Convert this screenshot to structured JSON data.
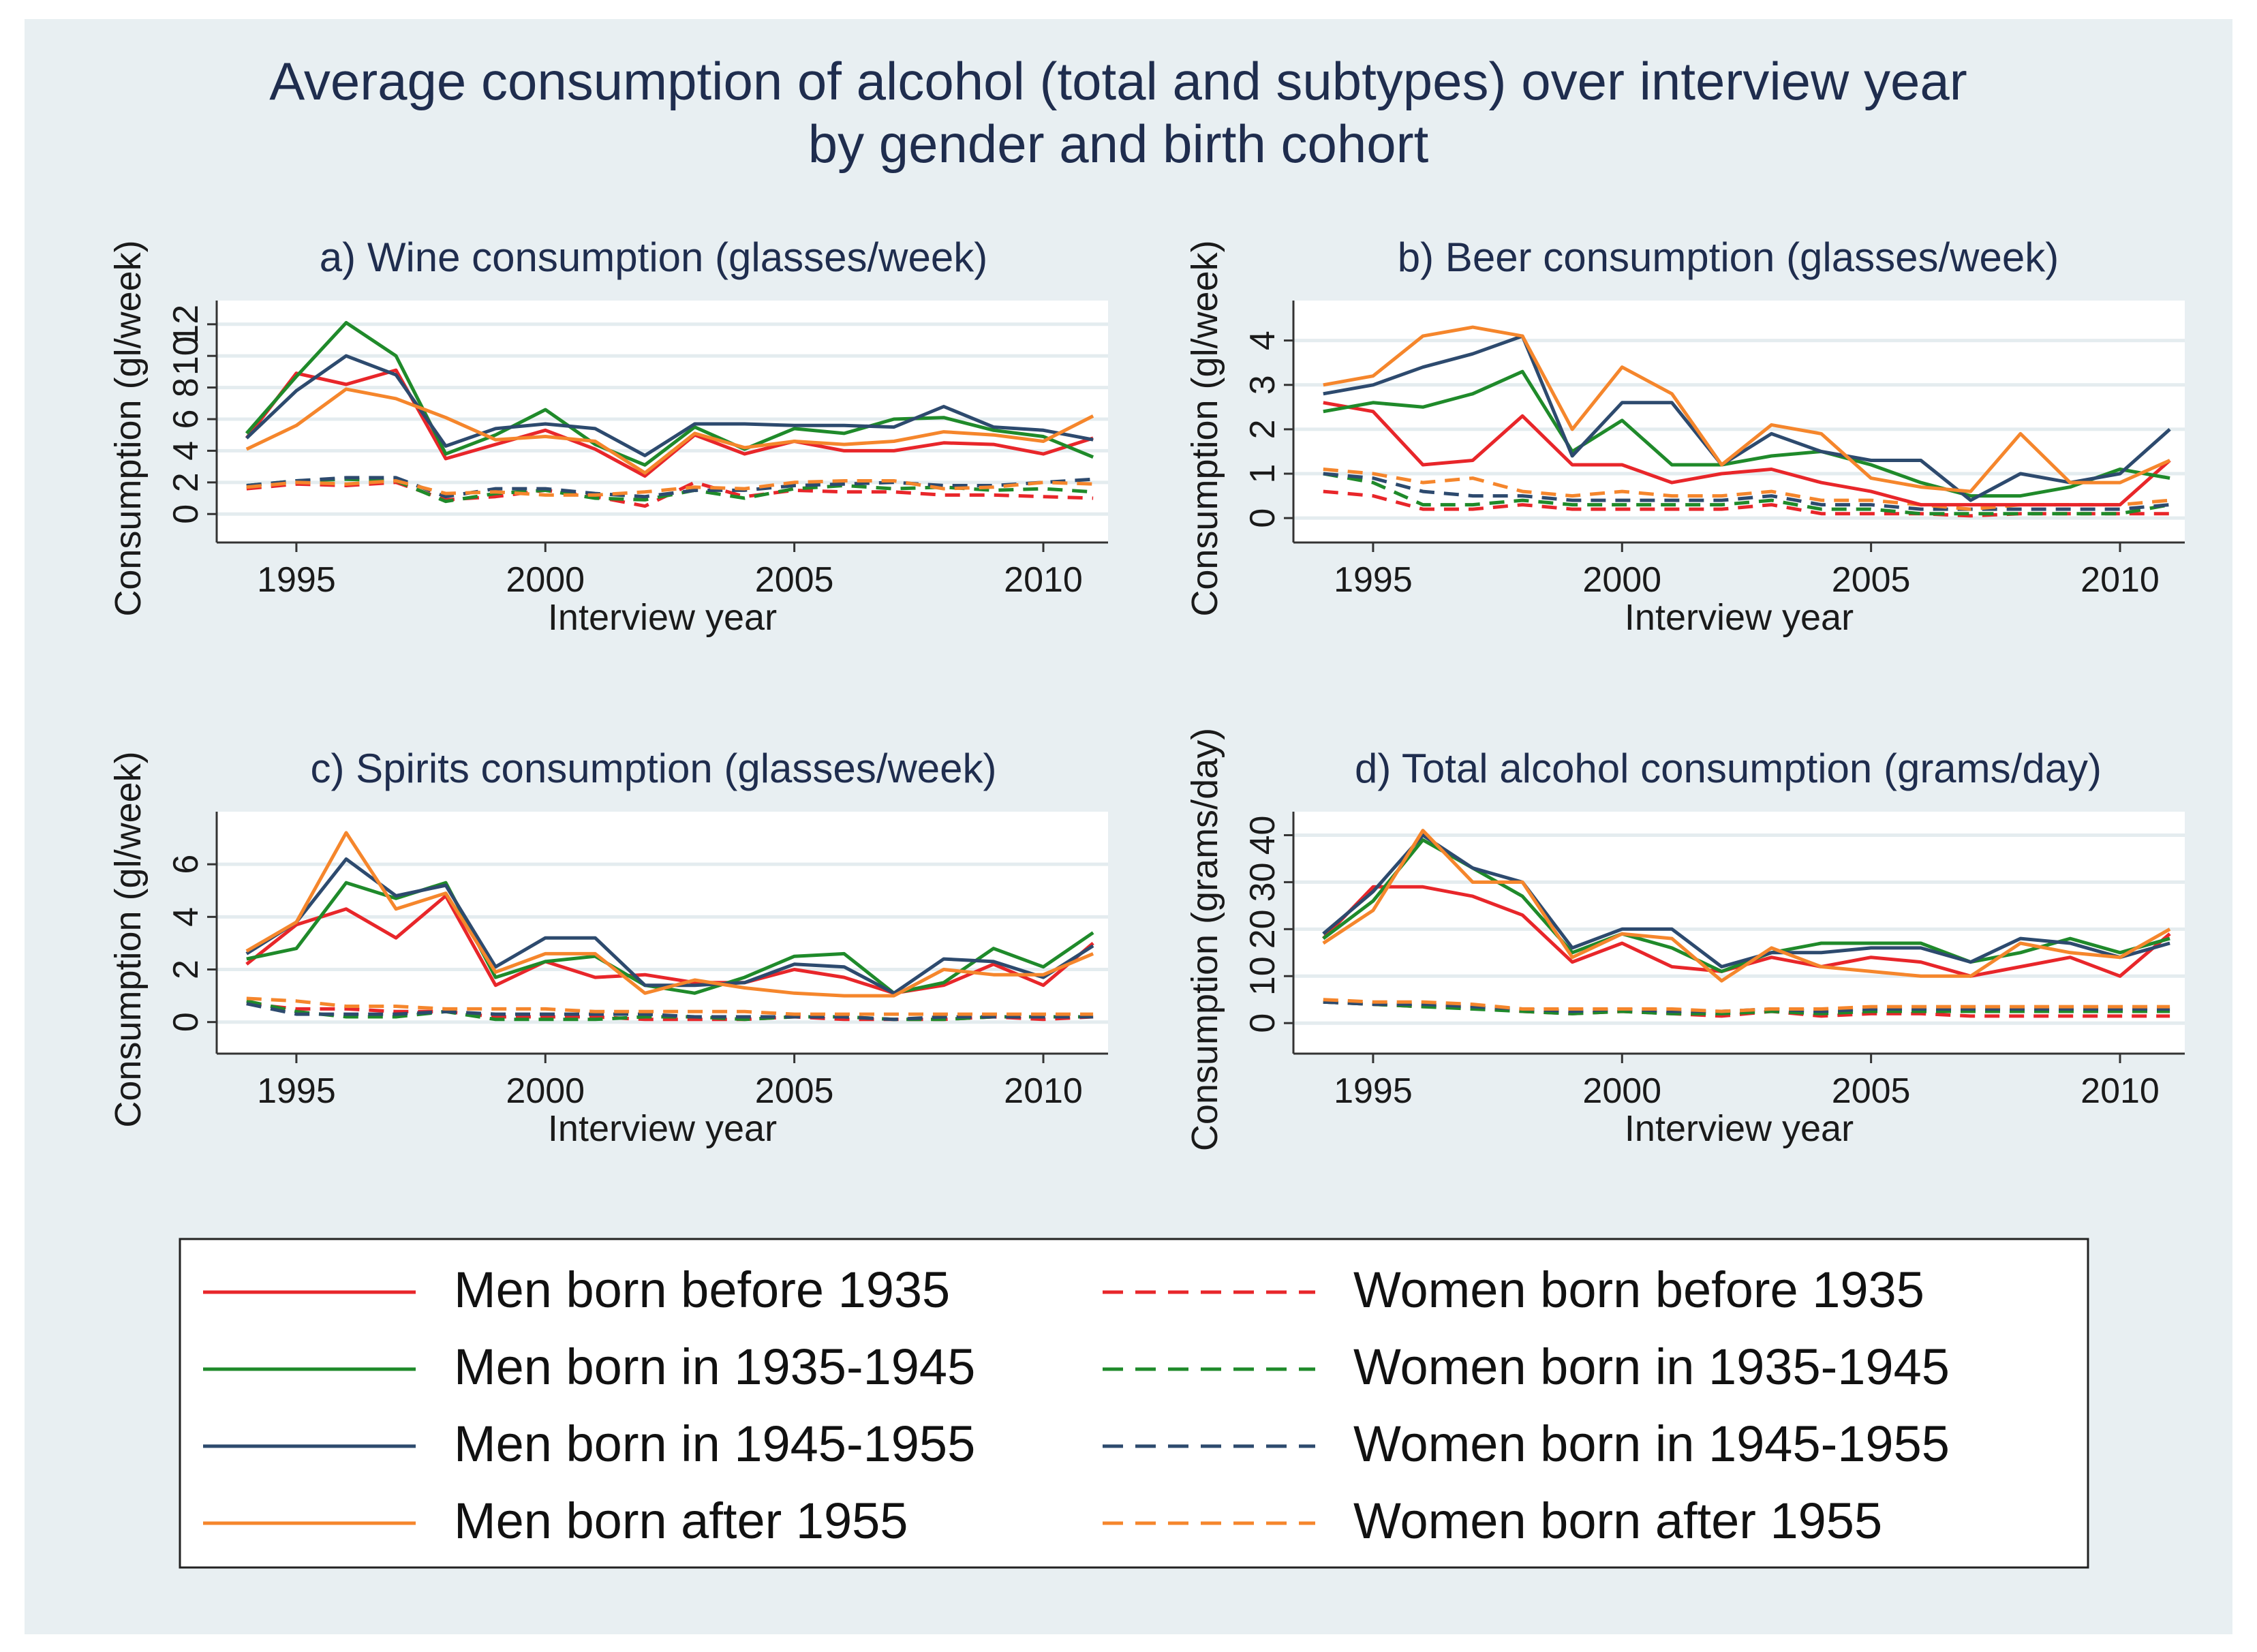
{
  "title_line1": "Average consumption of alcohol (total and subtypes) over interview year",
  "title_line2": "by gender and birth cohort",
  "legend": [
    {
      "key": "m_pre35",
      "label": "Men born before 1935",
      "color": "#e8262a",
      "dashed": false
    },
    {
      "key": "w_pre35",
      "label": "Women born before 1935",
      "color": "#e8262a",
      "dashed": true
    },
    {
      "key": "m_35_45",
      "label": "Men born in 1935-1945",
      "color": "#1f8a2a",
      "dashed": false
    },
    {
      "key": "w_35_45",
      "label": "Women born in 1935-1945",
      "color": "#1f8a2a",
      "dashed": true
    },
    {
      "key": "m_45_55",
      "label": "Men born in 1945-1955",
      "color": "#2d4a6e",
      "dashed": false
    },
    {
      "key": "w_45_55",
      "label": "Women born in 1945-1955",
      "color": "#2d4a6e",
      "dashed": true
    },
    {
      "key": "m_post55",
      "label": "Men born after 1955",
      "color": "#f5862c",
      "dashed": false
    },
    {
      "key": "w_post55",
      "label": "Women born after 1955",
      "color": "#f5862c",
      "dashed": true
    }
  ],
  "chart_data": [
    {
      "type": "line",
      "title": "a) Wine consumption (glasses/week)",
      "xlabel": "Interview year",
      "ylabel": "Consumption (gl/week)",
      "xlim": [
        1993.4,
        2011.3
      ],
      "ylim": [
        -1.8,
        13.5
      ],
      "xticks": [
        1995,
        2000,
        2005,
        2010
      ],
      "yticks": [
        0,
        2,
        4,
        6,
        8,
        10,
        12
      ],
      "ytick_labels": [
        "0",
        "2",
        "4",
        "6",
        "8",
        "10",
        "12"
      ],
      "x": [
        1994,
        1995,
        1996,
        1997,
        1998,
        1999,
        2000,
        2001,
        2002,
        2003,
        2004,
        2005,
        2006,
        2007,
        2008,
        2009,
        2010,
        2011
      ],
      "series": [
        {
          "key": "m_pre35",
          "values": [
            4.8,
            8.9,
            8.2,
            9.1,
            3.5,
            4.4,
            5.3,
            4.1,
            2.4,
            5.0,
            3.8,
            4.6,
            4.0,
            4.0,
            4.5,
            4.4,
            3.8,
            4.8
          ]
        },
        {
          "key": "m_35_45",
          "values": [
            5.1,
            8.7,
            12.1,
            10.0,
            3.8,
            5.0,
            6.6,
            4.4,
            3.1,
            5.5,
            4.1,
            5.4,
            5.1,
            6.0,
            6.1,
            5.3,
            4.9,
            3.6
          ]
        },
        {
          "key": "m_45_55",
          "values": [
            4.8,
            7.8,
            10.0,
            8.8,
            4.3,
            5.4,
            5.7,
            5.4,
            3.7,
            5.7,
            5.7,
            5.6,
            5.6,
            5.5,
            6.8,
            5.5,
            5.3,
            4.7
          ]
        },
        {
          "key": "m_post55",
          "values": [
            4.1,
            5.6,
            7.9,
            7.3,
            6.1,
            4.7,
            4.9,
            4.6,
            2.6,
            5.1,
            4.2,
            4.6,
            4.4,
            4.6,
            5.2,
            5.0,
            4.6,
            6.2
          ]
        },
        {
          "key": "w_pre35",
          "values": [
            1.6,
            1.9,
            1.8,
            2.0,
            0.9,
            1.1,
            1.5,
            1.1,
            0.5,
            2.0,
            1.1,
            1.5,
            1.4,
            1.4,
            1.2,
            1.2,
            1.1,
            1.0
          ]
        },
        {
          "key": "w_35_45",
          "values": [
            1.8,
            2.1,
            2.2,
            2.1,
            0.8,
            1.3,
            1.5,
            1.0,
            0.9,
            1.5,
            1.0,
            1.6,
            1.8,
            1.6,
            1.7,
            1.5,
            1.6,
            1.4
          ]
        },
        {
          "key": "w_45_55",
          "values": [
            1.8,
            2.1,
            2.3,
            2.3,
            1.1,
            1.6,
            1.6,
            1.3,
            1.1,
            1.5,
            1.5,
            1.8,
            1.9,
            2.0,
            1.8,
            1.8,
            2.0,
            2.2
          ]
        },
        {
          "key": "w_post55",
          "values": [
            1.7,
            2.0,
            1.9,
            2.1,
            1.3,
            1.4,
            1.2,
            1.2,
            1.4,
            1.7,
            1.6,
            2.0,
            2.1,
            2.1,
            1.6,
            1.7,
            2.0,
            1.9
          ]
        }
      ]
    },
    {
      "type": "line",
      "title": "b) Beer consumption (glasses/week)",
      "xlabel": "Interview year",
      "ylabel": "Consumption (gl/week)",
      "xlim": [
        1993.4,
        2011.3
      ],
      "ylim": [
        -0.55,
        4.9
      ],
      "xticks": [
        1995,
        2000,
        2005,
        2010
      ],
      "yticks": [
        0,
        1,
        2,
        3,
        4
      ],
      "ytick_labels": [
        "0",
        "1",
        "2",
        "3",
        "4"
      ],
      "x": [
        1994,
        1995,
        1996,
        1997,
        1998,
        1999,
        2000,
        2001,
        2002,
        2003,
        2004,
        2005,
        2006,
        2007,
        2008,
        2009,
        2010,
        2011
      ],
      "series": [
        {
          "key": "m_pre35",
          "values": [
            2.6,
            2.4,
            1.2,
            1.3,
            2.3,
            1.2,
            1.2,
            0.8,
            1.0,
            1.1,
            0.8,
            0.6,
            0.3,
            0.3,
            0.3,
            0.3,
            0.3,
            1.3
          ]
        },
        {
          "key": "m_35_45",
          "values": [
            2.4,
            2.6,
            2.5,
            2.8,
            3.3,
            1.5,
            2.2,
            1.2,
            1.2,
            1.4,
            1.5,
            1.2,
            0.8,
            0.5,
            0.5,
            0.7,
            1.1,
            0.9
          ]
        },
        {
          "key": "m_45_55",
          "values": [
            2.8,
            3.0,
            3.4,
            3.7,
            4.1,
            1.4,
            2.6,
            2.6,
            1.2,
            1.9,
            1.5,
            1.3,
            1.3,
            0.4,
            1.0,
            0.8,
            1.0,
            2.0
          ]
        },
        {
          "key": "m_post55",
          "values": [
            3.0,
            3.2,
            4.1,
            4.3,
            4.1,
            2.0,
            3.4,
            2.8,
            1.2,
            2.1,
            1.9,
            0.9,
            0.7,
            0.6,
            1.9,
            0.8,
            0.8,
            1.3
          ]
        },
        {
          "key": "w_pre35",
          "values": [
            0.6,
            0.5,
            0.2,
            0.2,
            0.3,
            0.2,
            0.2,
            0.2,
            0.2,
            0.3,
            0.1,
            0.1,
            0.1,
            0.05,
            0.1,
            0.1,
            0.1,
            0.1
          ]
        },
        {
          "key": "w_35_45",
          "values": [
            1.0,
            0.8,
            0.3,
            0.3,
            0.4,
            0.3,
            0.3,
            0.3,
            0.3,
            0.4,
            0.2,
            0.2,
            0.1,
            0.1,
            0.1,
            0.1,
            0.1,
            0.3
          ]
        },
        {
          "key": "w_45_55",
          "values": [
            1.0,
            0.9,
            0.6,
            0.5,
            0.5,
            0.4,
            0.4,
            0.4,
            0.4,
            0.5,
            0.3,
            0.3,
            0.2,
            0.2,
            0.2,
            0.2,
            0.2,
            0.3
          ]
        },
        {
          "key": "w_post55",
          "values": [
            1.1,
            1.0,
            0.8,
            0.9,
            0.6,
            0.5,
            0.6,
            0.5,
            0.5,
            0.6,
            0.4,
            0.4,
            0.3,
            0.2,
            0.3,
            0.3,
            0.3,
            0.4
          ]
        }
      ]
    },
    {
      "type": "line",
      "title": "c) Spirits consumption (glasses/week)",
      "xlabel": "Interview year",
      "ylabel": "Consumption (gl/week)",
      "xlim": [
        1993.4,
        2011.3
      ],
      "ylim": [
        -1.2,
        8.0
      ],
      "xticks": [
        1995,
        2000,
        2005,
        2010
      ],
      "yticks": [
        0,
        2,
        4,
        6
      ],
      "ytick_labels": [
        "0",
        "2",
        "4",
        "6"
      ],
      "x": [
        1994,
        1995,
        1996,
        1997,
        1998,
        1999,
        2000,
        2001,
        2002,
        2003,
        2004,
        2005,
        2006,
        2007,
        2008,
        2009,
        2010,
        2011
      ],
      "series": [
        {
          "key": "m_pre35",
          "values": [
            2.2,
            3.7,
            4.3,
            3.2,
            4.8,
            1.4,
            2.3,
            1.7,
            1.8,
            1.5,
            1.5,
            2.0,
            1.7,
            1.1,
            1.4,
            2.2,
            1.4,
            3.0
          ]
        },
        {
          "key": "m_35_45",
          "values": [
            2.4,
            2.8,
            5.3,
            4.7,
            5.3,
            1.7,
            2.3,
            2.5,
            1.4,
            1.1,
            1.7,
            2.5,
            2.6,
            1.1,
            1.5,
            2.8,
            2.1,
            3.4
          ]
        },
        {
          "key": "m_45_55",
          "values": [
            2.6,
            3.8,
            6.2,
            4.8,
            5.2,
            2.1,
            3.2,
            3.2,
            1.4,
            1.4,
            1.5,
            2.2,
            2.1,
            1.1,
            2.4,
            2.3,
            1.7,
            2.9
          ]
        },
        {
          "key": "m_post55",
          "values": [
            2.7,
            3.8,
            7.2,
            4.3,
            4.9,
            1.9,
            2.6,
            2.6,
            1.1,
            1.6,
            1.3,
            1.1,
            1.0,
            1.0,
            2.0,
            1.8,
            1.8,
            2.6
          ]
        },
        {
          "key": "w_pre35",
          "values": [
            0.7,
            0.5,
            0.5,
            0.4,
            0.4,
            0.2,
            0.2,
            0.2,
            0.1,
            0.1,
            0.1,
            0.2,
            0.1,
            0.1,
            0.1,
            0.2,
            0.1,
            0.2
          ]
        },
        {
          "key": "w_35_45",
          "values": [
            0.8,
            0.4,
            0.2,
            0.2,
            0.4,
            0.1,
            0.1,
            0.1,
            0.2,
            0.2,
            0.1,
            0.2,
            0.2,
            0.1,
            0.1,
            0.2,
            0.2,
            0.2
          ]
        },
        {
          "key": "w_45_55",
          "values": [
            0.7,
            0.3,
            0.3,
            0.3,
            0.4,
            0.3,
            0.3,
            0.3,
            0.3,
            0.2,
            0.2,
            0.2,
            0.2,
            0.1,
            0.2,
            0.2,
            0.2,
            0.2
          ]
        },
        {
          "key": "w_post55",
          "values": [
            0.9,
            0.8,
            0.6,
            0.6,
            0.5,
            0.5,
            0.5,
            0.4,
            0.4,
            0.4,
            0.4,
            0.3,
            0.3,
            0.3,
            0.3,
            0.3,
            0.3,
            0.3
          ]
        }
      ]
    },
    {
      "type": "line",
      "title": "d) Total alcohol consumption (grams/day)",
      "xlabel": "Interview year",
      "ylabel": "Consumption (grams/day)",
      "xlim": [
        1993.4,
        2011.3
      ],
      "ylim": [
        -6.5,
        45.0
      ],
      "xticks": [
        1995,
        2000,
        2005,
        2010
      ],
      "yticks": [
        0,
        10,
        20,
        30,
        40
      ],
      "ytick_labels": [
        "0",
        "10",
        "20",
        "30",
        "40"
      ],
      "x": [
        1994,
        1995,
        1996,
        1997,
        1998,
        1999,
        2000,
        2001,
        2002,
        2003,
        2004,
        2005,
        2006,
        2007,
        2008,
        2009,
        2010,
        2011
      ],
      "series": [
        {
          "key": "m_pre35",
          "values": [
            18,
            29,
            29,
            27,
            23,
            13,
            17,
            12,
            11,
            14,
            12,
            14,
            13,
            10,
            12,
            14,
            10,
            19
          ]
        },
        {
          "key": "m_35_45",
          "values": [
            18,
            26,
            39,
            33,
            27,
            15,
            19,
            16,
            11,
            15,
            17,
            17,
            17,
            13,
            15,
            18,
            15,
            18
          ]
        },
        {
          "key": "m_45_55",
          "values": [
            19,
            28,
            40,
            33,
            30,
            16,
            20,
            20,
            12,
            15,
            15,
            16,
            16,
            13,
            18,
            17,
            14,
            17
          ]
        },
        {
          "key": "m_post55",
          "values": [
            17,
            24,
            41,
            30,
            30,
            14,
            19,
            18,
            9,
            16,
            12,
            11,
            10,
            10,
            17,
            15,
            14,
            20
          ]
        },
        {
          "key": "w_pre35",
          "values": [
            4.5,
            4.0,
            3.5,
            3.5,
            2.5,
            2.0,
            2.5,
            2.0,
            1.5,
            2.5,
            1.5,
            2.0,
            2.0,
            1.5,
            1.5,
            1.5,
            1.5,
            1.5
          ]
        },
        {
          "key": "w_35_45",
          "values": [
            4.5,
            4.0,
            3.5,
            3.0,
            2.5,
            2.0,
            2.5,
            2.0,
            2.0,
            2.5,
            2.0,
            2.5,
            2.5,
            2.5,
            2.5,
            2.5,
            2.5,
            2.5
          ]
        },
        {
          "key": "w_45_55",
          "values": [
            4.5,
            4.0,
            4.0,
            3.5,
            3.0,
            2.5,
            3.0,
            2.5,
            2.5,
            3.0,
            2.5,
            3.0,
            3.0,
            3.0,
            3.0,
            3.0,
            3.0,
            3.0
          ]
        },
        {
          "key": "w_post55",
          "values": [
            5.0,
            4.5,
            4.5,
            4.0,
            3.0,
            3.0,
            3.0,
            3.0,
            2.5,
            3.0,
            3.0,
            3.5,
            3.5,
            3.5,
            3.5,
            3.5,
            3.5,
            3.5
          ]
        }
      ]
    }
  ]
}
